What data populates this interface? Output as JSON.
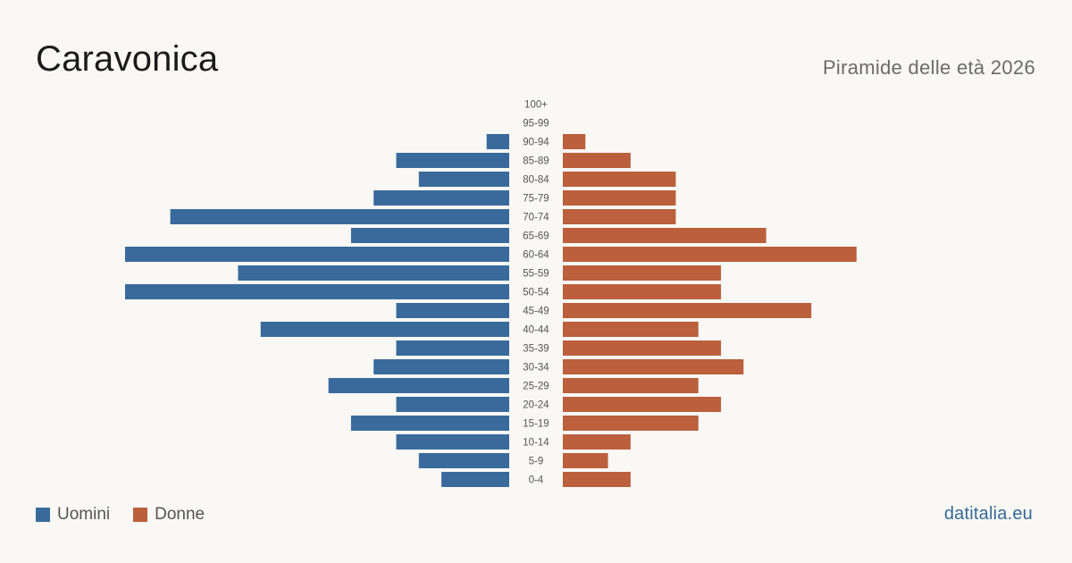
{
  "header": {
    "title": "Caravonica",
    "subtitle": "Piramide delle età 2026"
  },
  "legend": {
    "men_label": "Uomini",
    "women_label": "Donne"
  },
  "brand": "datitalia.eu",
  "colors": {
    "men": "#3a6a9c",
    "women": "#bb5f3c",
    "background": "#f9f8f4"
  },
  "chart_data": {
    "type": "bar",
    "orientation": "horizontal-pyramid",
    "categories": [
      "100+",
      "95-99",
      "90-94",
      "85-89",
      "80-84",
      "75-79",
      "70-74",
      "65-69",
      "60-64",
      "55-59",
      "50-54",
      "45-49",
      "40-44",
      "35-39",
      "30-34",
      "25-29",
      "20-24",
      "15-19",
      "10-14",
      "5-9",
      "0-4"
    ],
    "series": [
      {
        "name": "Uomini",
        "values": [
          0,
          0,
          1,
          5,
          4,
          6,
          15,
          7,
          17,
          12,
          17,
          5,
          11,
          5,
          6,
          8,
          5,
          7,
          5,
          4,
          3
        ]
      },
      {
        "name": "Donne",
        "values": [
          0,
          0,
          1,
          3,
          5,
          5,
          5,
          9,
          13,
          7,
          7,
          11,
          6,
          7,
          8,
          6,
          7,
          6,
          3,
          2,
          3
        ]
      }
    ],
    "xlim": [
      0,
      17
    ],
    "grid": false,
    "legend_position": "bottom-left"
  }
}
